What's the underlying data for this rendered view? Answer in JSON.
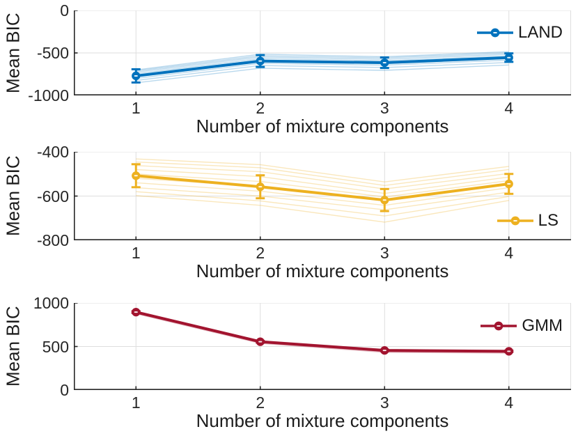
{
  "figure": {
    "background": "#ffffff",
    "axis_color": "#262626",
    "grid_color": "#dedede"
  },
  "chart_data": [
    {
      "type": "line",
      "title": "",
      "ylabel": "Mean BIC",
      "xlabel": "Number of mixture components",
      "x": [
        1,
        2,
        3,
        4
      ],
      "xticklabels": [
        "1",
        "2",
        "3",
        "4"
      ],
      "xlim": [
        0.5,
        4.5
      ],
      "ylim": [
        -1000,
        0
      ],
      "yticks": [
        0,
        -500,
        -1000
      ],
      "yticklabels": [
        "0",
        "-500",
        "-1000"
      ],
      "grid": true,
      "legend": {
        "label": "LAND",
        "position": "top-right"
      },
      "color": "#0072BD",
      "run_opacity": 0.28,
      "series": [
        {
          "name": "LAND mean",
          "values": [
            -770,
            -595,
            -615,
            -555
          ],
          "err": [
            78,
            70,
            62,
            50
          ]
        }
      ],
      "individual_runs": [
        [
          -700,
          -515,
          -545,
          -485
        ],
        [
          -712,
          -532,
          -558,
          -500
        ],
        [
          -726,
          -548,
          -574,
          -516
        ],
        [
          -744,
          -566,
          -592,
          -534
        ],
        [
          -762,
          -584,
          -608,
          -549
        ],
        [
          -782,
          -604,
          -626,
          -566
        ],
        [
          -800,
          -622,
          -644,
          -584
        ],
        [
          -824,
          -648,
          -672,
          -612
        ],
        [
          -852,
          -680,
          -705,
          -642
        ]
      ]
    },
    {
      "type": "line",
      "title": "",
      "ylabel": "Mean BIC",
      "xlabel": "Number of mixture components",
      "x": [
        1,
        2,
        3,
        4
      ],
      "xticklabels": [
        "1",
        "2",
        "3",
        "4"
      ],
      "xlim": [
        0.5,
        4.5
      ],
      "ylim": [
        -800,
        -400
      ],
      "yticks": [
        -400,
        -600,
        -800
      ],
      "yticklabels": [
        "-400",
        "-600",
        "-800"
      ],
      "grid": true,
      "legend": {
        "label": "LS",
        "position": "bottom-right"
      },
      "color": "#EDB120",
      "run_opacity": 0.3,
      "series": [
        {
          "name": "LS mean",
          "values": [
            -508,
            -558,
            -618,
            -545
          ],
          "err": [
            52,
            52,
            50,
            45
          ]
        }
      ],
      "individual_runs": [
        [
          -432,
          -458,
          -536,
          -466
        ],
        [
          -446,
          -472,
          -552,
          -480
        ],
        [
          -462,
          -490,
          -568,
          -498
        ],
        [
          -480,
          -512,
          -588,
          -514
        ],
        [
          -500,
          -534,
          -604,
          -530
        ],
        [
          -520,
          -556,
          -622,
          -546
        ],
        [
          -540,
          -578,
          -642,
          -562
        ],
        [
          -562,
          -600,
          -662,
          -582
        ],
        [
          -580,
          -622,
          -690,
          -602
        ],
        [
          -598,
          -642,
          -718,
          -620
        ]
      ]
    },
    {
      "type": "line",
      "title": "",
      "ylabel": "Mean BIC",
      "xlabel": "Number of mixture components",
      "x": [
        1,
        2,
        3,
        4
      ],
      "xticklabels": [
        "1",
        "2",
        "3",
        "4"
      ],
      "xlim": [
        0.5,
        4.5
      ],
      "ylim": [
        0,
        1000
      ],
      "yticks": [
        1000,
        500,
        0
      ],
      "yticklabels": [
        "1000",
        "500",
        "0"
      ],
      "grid": true,
      "legend": {
        "label": "GMM",
        "position": "top-right"
      },
      "color": "#A2142F",
      "run_opacity": 0.25,
      "series": [
        {
          "name": "GMM mean",
          "values": [
            895,
            555,
            455,
            445
          ],
          "err": [
            10,
            10,
            8,
            8
          ]
        }
      ],
      "individual_runs": [
        [
          902,
          566,
          466,
          456
        ],
        [
          894,
          558,
          458,
          448
        ],
        [
          888,
          551,
          450,
          441
        ],
        [
          882,
          543,
          441,
          431
        ],
        [
          876,
          536,
          433,
          424
        ]
      ]
    }
  ]
}
